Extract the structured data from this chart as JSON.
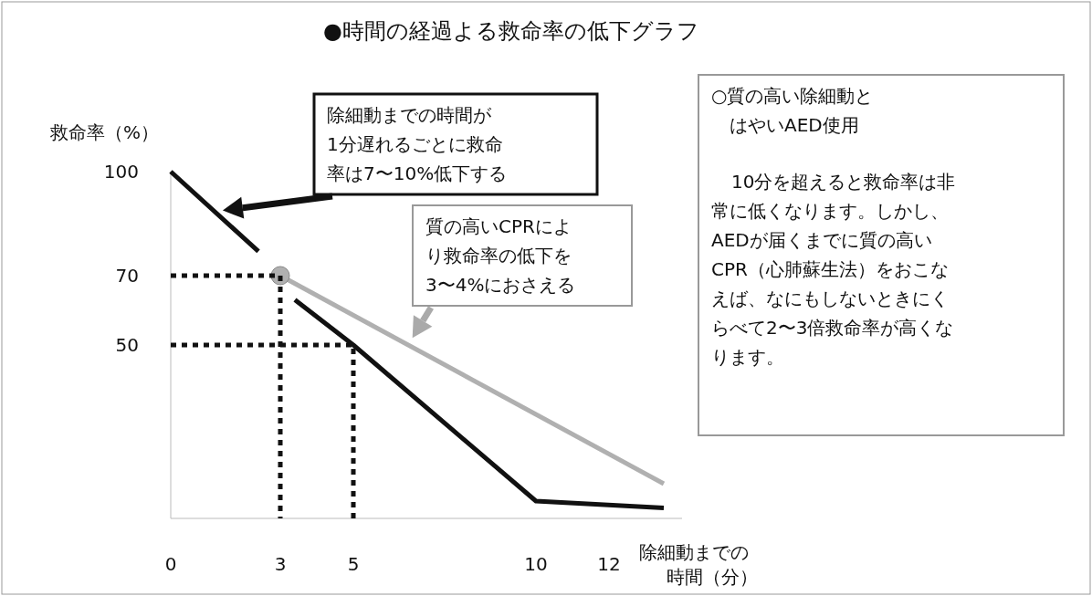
{
  "chart_data": {
    "type": "line",
    "title": "●時間の経過よる救命率の低下グラフ",
    "ylabel": "救命率（%）",
    "xlabel": "除細動までの時間（分）",
    "xlim": [
      0,
      14
    ],
    "xticks": [
      0,
      3,
      5,
      10,
      12
    ],
    "ylim": [
      0,
      100
    ],
    "yticks": [
      50,
      70,
      100
    ],
    "grid": false,
    "series": [
      {
        "color": "#111111",
        "line_style": "solid",
        "x": [
          0,
          2.4,
          null,
          3.4,
          5,
          10,
          13.5
        ],
        "values": [
          100,
          77,
          null,
          63,
          50,
          5,
          3
        ]
      },
      {
        "color": "#b0b0b0",
        "line_style": "solid",
        "x": [
          3,
          13.5
        ],
        "values": [
          70,
          10
        ]
      },
      {
        "type": "scatter",
        "color": "#b0b0b0",
        "marker": "circle",
        "x": [
          3
        ],
        "values": [
          70
        ]
      },
      {
        "color": "#111111",
        "line_style": "dotted",
        "x": [
          0,
          3,
          3
        ],
        "values": [
          70,
          70,
          0
        ]
      },
      {
        "color": "#111111",
        "line_style": "dotted",
        "x": [
          0,
          5,
          5
        ],
        "values": [
          50,
          50,
          0
        ]
      }
    ],
    "annotations": [
      "除細動までの時間が1分遅れるごとに救命率は7〜10%低下する",
      {
        "text": "質の高いCPRにより救命率の低下を3〜4%におさえる",
        "x": 6.5,
        "y": 50
      },
      "○質の高い除細動とはやいAED使用",
      "10分を超えると救命率は非常に低くなります。しかし、AEDが届くまでに質の高いCPR（心肺蘇生法）をおこなえば、なにもしないときにくらべて2〜3倍救命率が高くなります。"
    ]
  }
}
